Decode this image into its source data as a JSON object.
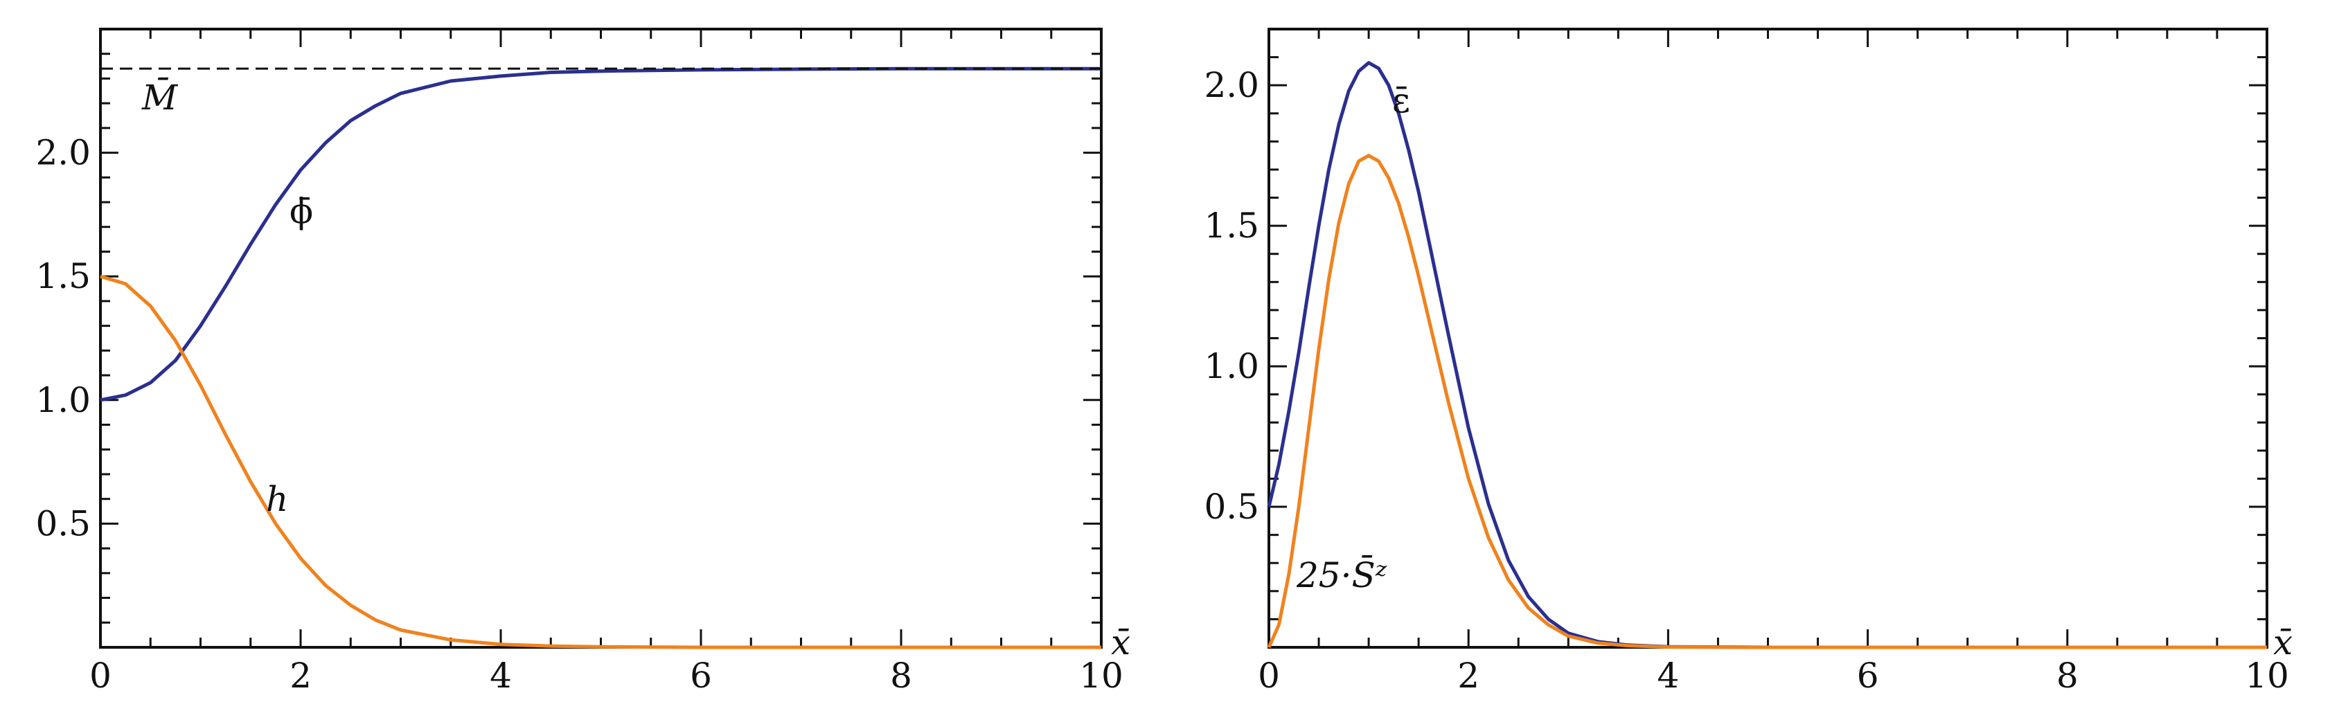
{
  "colors": {
    "blue": "#2b2f8f",
    "orange": "#f0821e",
    "frame": "#111111",
    "dashed": "#111111"
  },
  "chart_data": [
    {
      "type": "line",
      "title": "",
      "xlabel": "x̄",
      "ylabel": "",
      "xlim": [
        0,
        10
      ],
      "ylim": [
        0,
        2.5
      ],
      "xticks": [
        "0",
        "2",
        "4",
        "6",
        "8",
        "10"
      ],
      "yticks": [
        "0.5",
        "1.0",
        "1.5",
        "2.0"
      ],
      "grid": false,
      "reference_lines": [
        {
          "label": "M̄",
          "y": 2.34,
          "style": "dashed"
        }
      ],
      "series": [
        {
          "name": "ϕ̄",
          "color": "#2b2f8f",
          "x": [
            0,
            0.25,
            0.5,
            0.75,
            1.0,
            1.25,
            1.5,
            1.75,
            2.0,
            2.25,
            2.5,
            2.75,
            3.0,
            3.5,
            4.0,
            4.5,
            5.0,
            6.0,
            7.0,
            8.0,
            10.0
          ],
          "y": [
            1.0,
            1.02,
            1.07,
            1.16,
            1.3,
            1.46,
            1.63,
            1.79,
            1.93,
            2.04,
            2.13,
            2.19,
            2.24,
            2.29,
            2.31,
            2.325,
            2.33,
            2.335,
            2.338,
            2.34,
            2.34
          ]
        },
        {
          "name": "h",
          "color": "#f0821e",
          "x": [
            0,
            0.25,
            0.5,
            0.75,
            1.0,
            1.25,
            1.5,
            1.75,
            2.0,
            2.25,
            2.5,
            2.75,
            3.0,
            3.5,
            4.0,
            4.5,
            5.0,
            6.0,
            8.0,
            10.0
          ],
          "y": [
            1.5,
            1.47,
            1.38,
            1.24,
            1.06,
            0.86,
            0.67,
            0.5,
            0.36,
            0.25,
            0.17,
            0.11,
            0.07,
            0.03,
            0.012,
            0.005,
            0.002,
            0.0,
            0.0,
            0.0
          ]
        }
      ]
    },
    {
      "type": "line",
      "title": "",
      "xlabel": "x̄",
      "ylabel": "",
      "xlim": [
        0,
        10
      ],
      "ylim": [
        0,
        2.2
      ],
      "xticks": [
        "0",
        "2",
        "4",
        "6",
        "8",
        "10"
      ],
      "yticks": [
        "0.5",
        "1.0",
        "1.5",
        "2.0"
      ],
      "grid": false,
      "series": [
        {
          "name": "ε̄",
          "color": "#2b2f8f",
          "x": [
            0,
            0.1,
            0.2,
            0.3,
            0.4,
            0.5,
            0.6,
            0.7,
            0.8,
            0.9,
            1.0,
            1.1,
            1.2,
            1.3,
            1.4,
            1.5,
            1.6,
            1.8,
            2.0,
            2.2,
            2.4,
            2.6,
            2.8,
            3.0,
            3.3,
            3.6,
            4.0,
            5.0,
            10.0
          ],
          "y": [
            0.5,
            0.65,
            0.84,
            1.05,
            1.28,
            1.5,
            1.7,
            1.86,
            1.98,
            2.05,
            2.08,
            2.06,
            2.0,
            1.9,
            1.77,
            1.62,
            1.45,
            1.11,
            0.78,
            0.51,
            0.31,
            0.18,
            0.1,
            0.05,
            0.02,
            0.008,
            0.002,
            0.0,
            0.0
          ]
        },
        {
          "name": "25·S̄ᶻ",
          "color": "#f0821e",
          "x": [
            0,
            0.1,
            0.2,
            0.3,
            0.4,
            0.5,
            0.6,
            0.7,
            0.8,
            0.9,
            1.0,
            1.1,
            1.2,
            1.3,
            1.4,
            1.5,
            1.6,
            1.8,
            2.0,
            2.2,
            2.4,
            2.6,
            2.8,
            3.0,
            3.3,
            3.6,
            4.0,
            5.0,
            10.0
          ],
          "y": [
            0.0,
            0.08,
            0.26,
            0.5,
            0.78,
            1.06,
            1.31,
            1.51,
            1.65,
            1.73,
            1.75,
            1.73,
            1.67,
            1.58,
            1.46,
            1.32,
            1.17,
            0.87,
            0.6,
            0.39,
            0.24,
            0.14,
            0.08,
            0.04,
            0.015,
            0.006,
            0.001,
            0.0,
            0.0
          ]
        }
      ]
    }
  ],
  "labels": {
    "left_M": "M̄",
    "left_phi": "ϕ̄",
    "left_h": "h",
    "right_eps": "ε̄",
    "right_S": "25·S̄ᶻ"
  }
}
